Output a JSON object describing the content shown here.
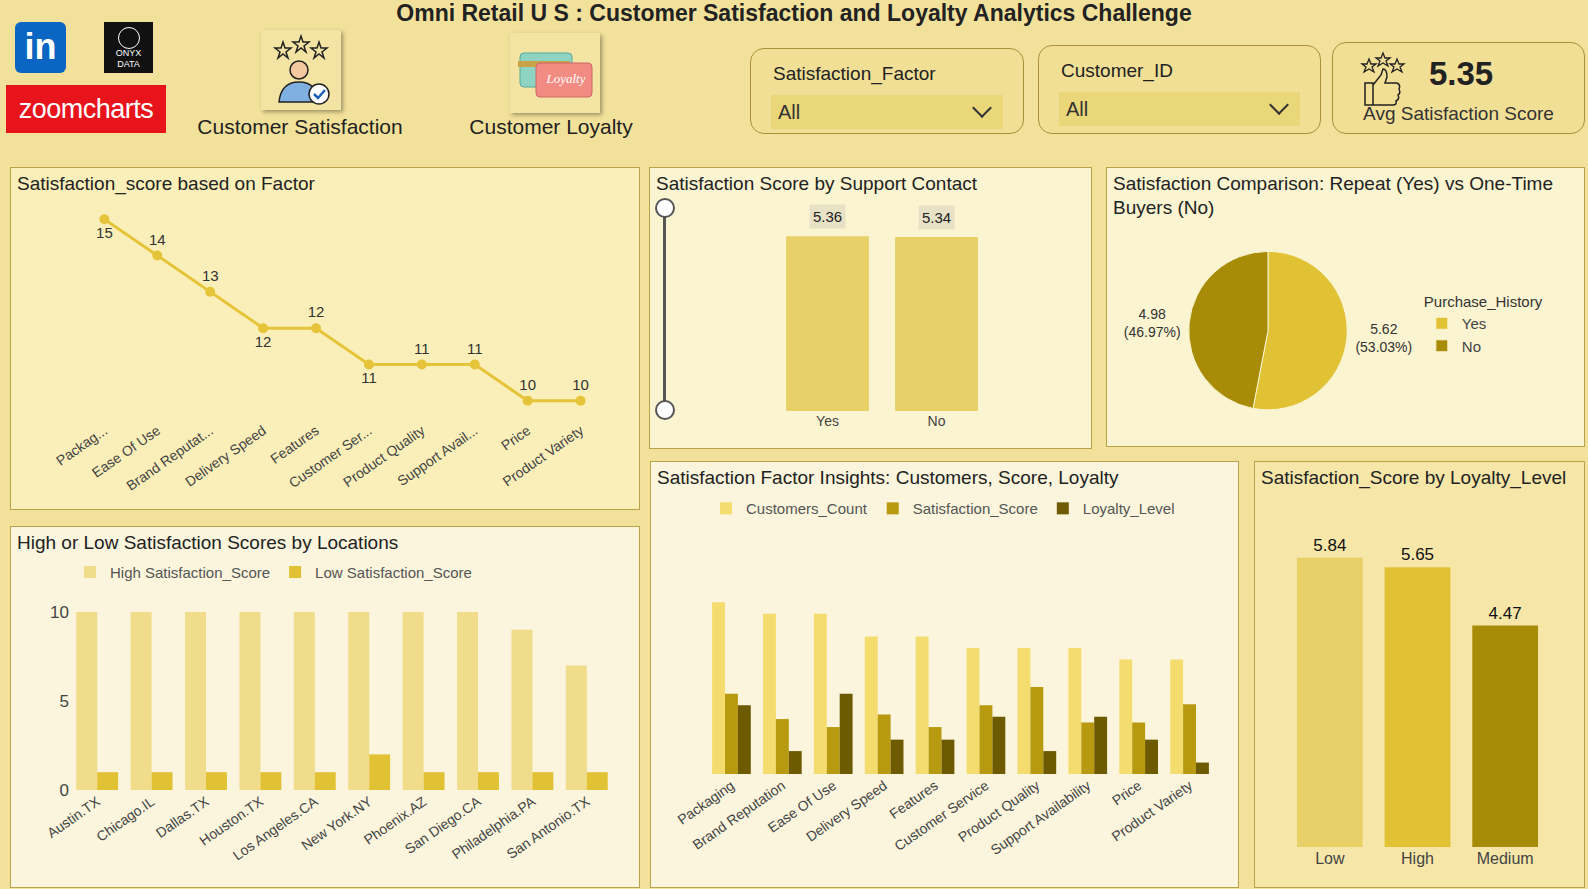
{
  "header": {
    "title": "Omni Retail U S : Customer Satisfaction and Loyalty Analytics Challenge",
    "logos": [
      "in",
      "ONYX DATA",
      "zoomcharts"
    ],
    "nav": [
      {
        "label": "Customer Satisfaction"
      },
      {
        "label": "Customer Loyalty",
        "badge": "Loyalty"
      }
    ],
    "slicers": [
      {
        "label": "Satisfaction_Factor",
        "value": "All"
      },
      {
        "label": "Customer_ID",
        "value": "All"
      }
    ],
    "kpi": {
      "value": 5.35,
      "label": "Avg Satisfaction Score"
    }
  },
  "chart_data": [
    {
      "type": "line",
      "title": "Satisfaction_score based on Factor",
      "categories": [
        "Packag...",
        "Ease Of Use",
        "Brand Reputat...",
        "Delivery Speed",
        "Features",
        "Customer Ser...",
        "Product Quality",
        "Support Avail...",
        "Price",
        "Product Variety"
      ],
      "values": [
        15,
        14,
        13,
        12,
        12,
        11,
        11,
        11,
        10,
        10
      ],
      "color": "#e6c43a",
      "marker": "circle",
      "ylim": [
        9.5,
        15.5
      ],
      "yticks": [],
      "tick_labels": "x",
      "data_labels": true,
      "grid": false
    },
    {
      "type": "bar",
      "title": "Satisfaction Score by Support Contact",
      "categories": [
        "Yes",
        "No"
      ],
      "values": [
        5.36,
        5.34
      ],
      "color": "#e8d068",
      "ylim": [
        0,
        5.8
      ],
      "yticks": [],
      "tick_labels": "x",
      "data_labels": true,
      "grid": false
    },
    {
      "type": "pie",
      "title": "Satisfaction Comparison: Repeat (Yes) vs One-Time Buyers (No)",
      "categories": [
        "Yes",
        "No"
      ],
      "values": [
        5.62,
        4.98
      ],
      "value_labels": [
        "5.62 (53.03%)",
        "4.98 (46.97%)"
      ],
      "colors": [
        "#e2c235",
        "#a88c08"
      ],
      "legend": "right",
      "legend_title": "Purchase_History",
      "data_labels": true
    },
    {
      "type": "bar",
      "title": "High or Low Satisfaction Scores by Locations",
      "categories": [
        "Austin.TX",
        "Chicago.IL",
        "Dallas.TX",
        "Houston.TX",
        "Los Angeles.CA",
        "New York.NY",
        "Phoenix.AZ",
        "San Diego.CA",
        "Philadelphia.PA",
        "San Antonio.TX"
      ],
      "series": [
        {
          "name": "High Satisfaction_Score",
          "color": "#f0dc8a",
          "values": [
            10,
            10,
            10,
            10,
            10,
            10,
            10,
            10,
            9,
            7
          ]
        },
        {
          "name": "Low Satisfaction_Score",
          "color": "#e2c235",
          "values": [
            1,
            1,
            1,
            1,
            1,
            2,
            1,
            1,
            1,
            1
          ]
        }
      ],
      "ylim": [
        0,
        10
      ],
      "yticks": [
        0,
        5,
        10
      ],
      "legend": "top-left",
      "grid": false
    },
    {
      "type": "bar",
      "title": "Satisfaction Factor Insights: Customers, Score, Loyalty",
      "categories": [
        "Packaging",
        "Brand Reputation",
        "Ease Of Use",
        "Delivery Speed",
        "Features",
        "Customer Service",
        "Product Quality",
        "Support Availability",
        "Price",
        "Product Variety"
      ],
      "series": [
        {
          "name": "Customers_Count",
          "color": "#f5dc6e",
          "values": [
            15,
            14,
            14,
            12,
            12,
            11,
            11,
            11,
            10,
            10
          ]
        },
        {
          "name": "Satisfaction_Score",
          "color": "#b89a10",
          "values": [
            7.0,
            4.8,
            4.1,
            5.2,
            4.1,
            6.0,
            7.6,
            4.5,
            4.5,
            6.1
          ]
        },
        {
          "name": "Loyalty_Level",
          "color": "#6e5a00",
          "values": [
            6,
            2,
            7,
            3,
            3,
            5,
            2,
            5,
            3,
            1
          ]
        }
      ],
      "ylim": [
        0,
        20
      ],
      "yticks": [],
      "tick_labels": "x",
      "legend": "top-left",
      "grid": false
    },
    {
      "type": "bar",
      "title": "Satisfaction_Score by Loyalty_Level",
      "categories": [
        "Low",
        "High",
        "Medium"
      ],
      "values": [
        5.84,
        5.65,
        4.47
      ],
      "colors": [
        "#e8d068",
        "#e2c235",
        "#a88c08"
      ],
      "ylim": [
        0,
        6.4
      ],
      "yticks": [],
      "tick_labels": "x",
      "data_labels": true,
      "grid": false
    }
  ]
}
